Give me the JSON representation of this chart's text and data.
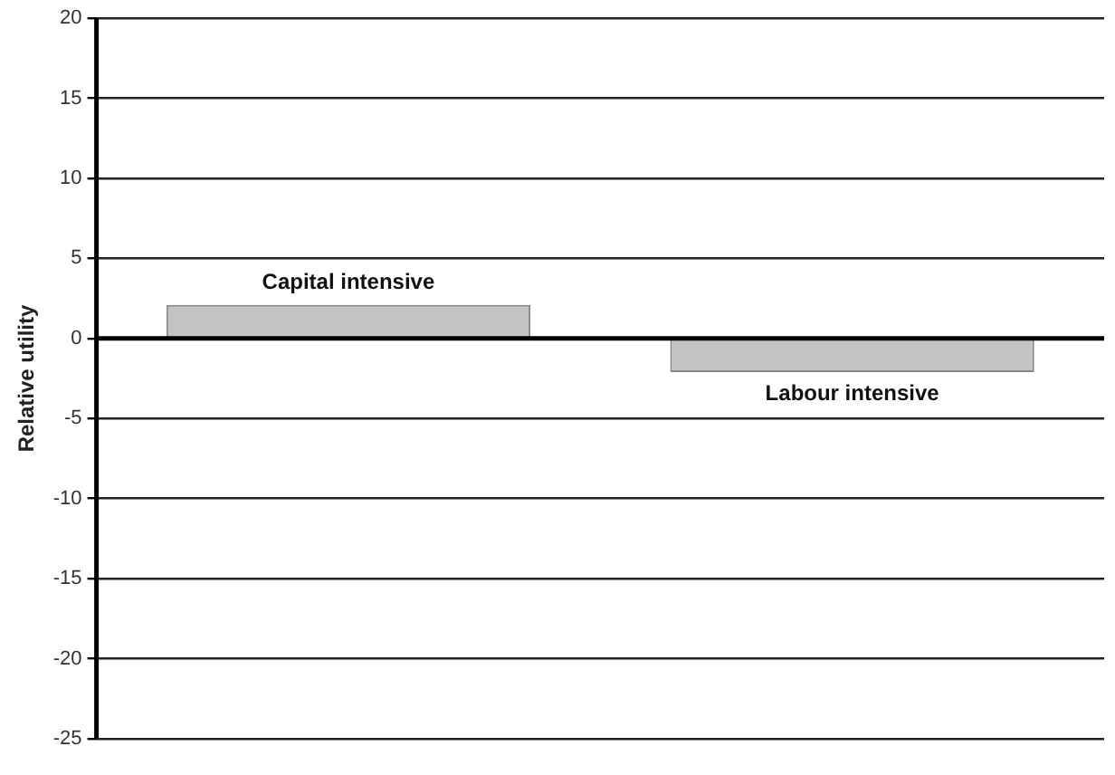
{
  "chart_data": {
    "type": "bar",
    "ylabel": "Relative utility",
    "categories": [
      "Capital intensive",
      "Labour intensive"
    ],
    "values": [
      2.1,
      -2.1
    ],
    "color": "#c4c4c4",
    "ylim": [
      -25,
      20
    ],
    "yticks": [
      -25,
      -20,
      -15,
      -10,
      -5,
      0,
      5,
      10,
      15,
      20
    ],
    "grid": "y",
    "tick_labels": "y"
  }
}
